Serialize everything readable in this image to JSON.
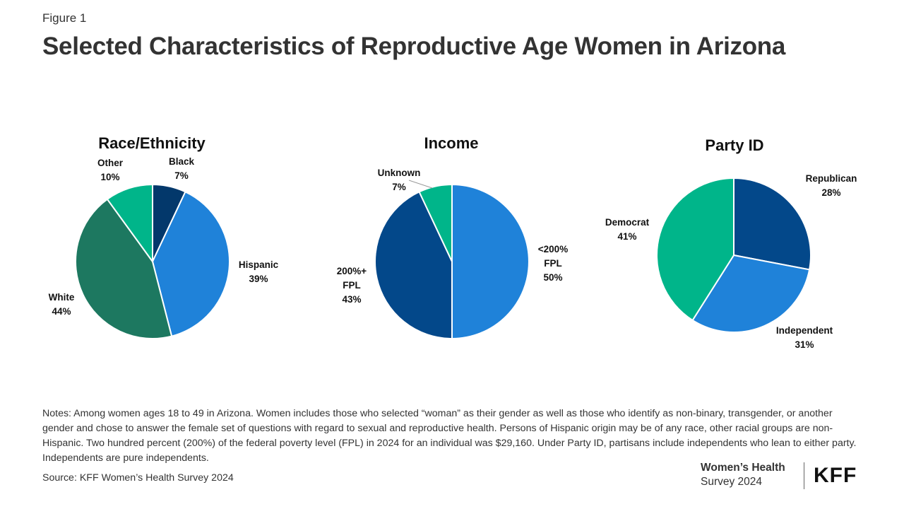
{
  "figure_label": "Figure 1",
  "title": "Selected Characteristics of Reproductive Age Women in Arizona",
  "chart_data": [
    {
      "type": "pie",
      "title": "Race/Ethnicity",
      "series": [
        {
          "name": "Black",
          "label": "Black",
          "value": 7,
          "value_label": "7%",
          "color": "#03386B"
        },
        {
          "name": "Hispanic",
          "label": "Hispanic",
          "value": 39,
          "value_label": "39%",
          "color": "#1F82D9"
        },
        {
          "name": "White",
          "label": "White",
          "value": 44,
          "value_label": "44%",
          "color": "#1D7860"
        },
        {
          "name": "Other",
          "label": "Other",
          "value": 10,
          "value_label": "10%",
          "color": "#00B58A"
        }
      ]
    },
    {
      "type": "pie",
      "title": "Income",
      "series": [
        {
          "name": "<200% FPL",
          "label": "<200%\nFPL",
          "value": 50,
          "value_label": "50%",
          "color": "#1F82D9"
        },
        {
          "name": "200%+ FPL",
          "label": "200%+\nFPL",
          "value": 43,
          "value_label": "43%",
          "color": "#03488A"
        },
        {
          "name": "Unknown",
          "label": "Unknown",
          "value": 7,
          "value_label": "7%",
          "color": "#00B58A"
        }
      ]
    },
    {
      "type": "pie",
      "title": "Party ID",
      "series": [
        {
          "name": "Republican",
          "label": "Republican",
          "value": 28,
          "value_label": "28%",
          "color": "#03488A"
        },
        {
          "name": "Independent",
          "label": "Independent",
          "value": 31,
          "value_label": "31%",
          "color": "#1F82D9"
        },
        {
          "name": "Democrat",
          "label": "Democrat",
          "value": 41,
          "value_label": "41%",
          "color": "#00B58A"
        }
      ]
    }
  ],
  "notes": "Notes: Among women ages 18 to 49 in Arizona. Women includes those who selected “woman” as their gender as well as those who identify as non-binary, transgender, or another gender and chose to answer the female set of questions with regard to sexual and reproductive health. Persons of Hispanic origin may be of any race, other racial groups are non-Hispanic. Two hundred percent (200%) of the federal poverty level (FPL) in 2024 for an individual was $29,160. Under Party ID, partisans include independents who lean to either party. Independents are pure independents.",
  "source": "Source: KFF Women’s Health Survey 2024",
  "branding": {
    "survey_line1": "Women’s Health",
    "survey_line2": "Survey 2024",
    "logo_text": "KFF"
  }
}
